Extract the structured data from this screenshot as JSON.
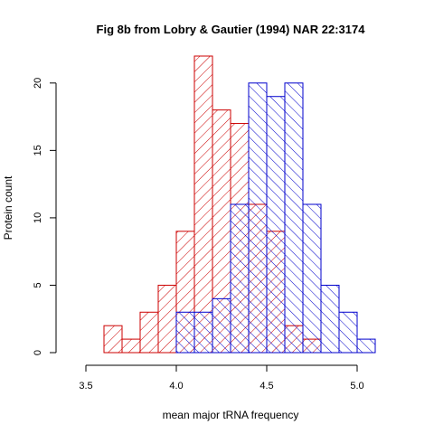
{
  "chart_data": {
    "type": "bar",
    "title": "Fig 8b from Lobry & Gautier (1994) NAR 22:3174",
    "xlabel": "mean major tRNA frequency",
    "ylabel": "Protein count",
    "xlim": [
      3.5,
      5.1
    ],
    "ylim": [
      0,
      22
    ],
    "x_ticks": [
      "3.5",
      "4.0",
      "4.5",
      "5.0"
    ],
    "y_ticks": [
      "0",
      "5",
      "10",
      "15",
      "20"
    ],
    "bin_width": 0.1,
    "series": [
      {
        "color": "#cc0000",
        "hatch_angle": 45,
        "bins": [
          {
            "start": 3.6,
            "count": 2
          },
          {
            "start": 3.7,
            "count": 1
          },
          {
            "start": 3.8,
            "count": 3
          },
          {
            "start": 3.9,
            "count": 5
          },
          {
            "start": 4.0,
            "count": 9
          },
          {
            "start": 4.1,
            "count": 22
          },
          {
            "start": 4.2,
            "count": 18
          },
          {
            "start": 4.3,
            "count": 17
          },
          {
            "start": 4.4,
            "count": 11
          },
          {
            "start": 4.5,
            "count": 9
          },
          {
            "start": 4.6,
            "count": 2
          },
          {
            "start": 4.7,
            "count": 1
          }
        ]
      },
      {
        "color": "#0000cc",
        "hatch_angle": 135,
        "bins": [
          {
            "start": 4.0,
            "count": 3
          },
          {
            "start": 4.1,
            "count": 3
          },
          {
            "start": 4.2,
            "count": 4
          },
          {
            "start": 4.3,
            "count": 11
          },
          {
            "start": 4.4,
            "count": 20
          },
          {
            "start": 4.5,
            "count": 19
          },
          {
            "start": 4.6,
            "count": 20
          },
          {
            "start": 4.7,
            "count": 11
          },
          {
            "start": 4.8,
            "count": 5
          },
          {
            "start": 4.9,
            "count": 3
          },
          {
            "start": 5.0,
            "count": 1
          }
        ]
      }
    ]
  }
}
